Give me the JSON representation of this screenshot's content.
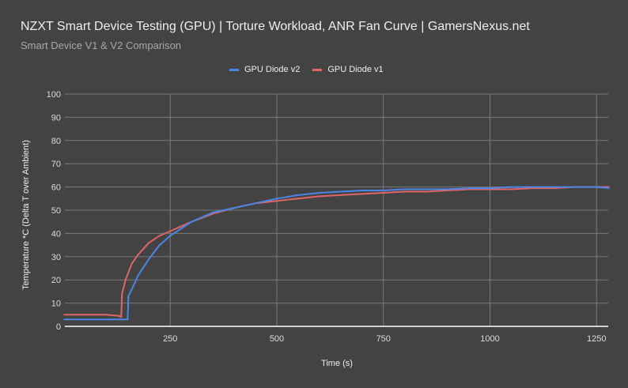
{
  "header": {
    "title": "NZXT Smart Device Testing (GPU) | Torture Workload, ANR Fan Curve | GamersNexus.net",
    "subtitle": "Smart Device V1 & V2 Comparison"
  },
  "legend": [
    {
      "label": "GPU Diode v2",
      "color": "#4a86e8"
    },
    {
      "label": "GPU Diode v1",
      "color": "#e06666"
    }
  ],
  "chart_data": {
    "type": "line",
    "title": "NZXT Smart Device Testing (GPU) | Torture Workload, ANR Fan Curve | GamersNexus.net",
    "subtitle": "Smart Device V1 & V2 Comparison",
    "xlabel": "Time (s)",
    "ylabel": "Temperature *C (Delta T over Ambient)",
    "xlim": [
      0,
      1280
    ],
    "ylim": [
      0,
      100
    ],
    "x_ticks": [
      250,
      500,
      750,
      1000,
      1250
    ],
    "y_ticks": [
      0,
      10,
      20,
      30,
      40,
      50,
      60,
      70,
      80,
      90,
      100
    ],
    "grid": true,
    "legend_position": "top",
    "series": [
      {
        "name": "GPU Diode v2",
        "color": "#4a86e8",
        "x": [
          0,
          50,
          100,
          140,
          143,
          150,
          152,
          160,
          175,
          200,
          225,
          250,
          275,
          300,
          350,
          400,
          450,
          500,
          550,
          600,
          650,
          700,
          750,
          800,
          850,
          900,
          950,
          1000,
          1050,
          1100,
          1150,
          1200,
          1250,
          1280
        ],
        "values": [
          3,
          3,
          3,
          3,
          3,
          3,
          13,
          16,
          22,
          29,
          35,
          39,
          42,
          45,
          49,
          51,
          53,
          55,
          56.5,
          57.5,
          58,
          58.5,
          58.5,
          59,
          59,
          59,
          59.5,
          59.5,
          60,
          60,
          60,
          60,
          60,
          59.5
        ]
      },
      {
        "name": "GPU Diode v1",
        "color": "#e06666",
        "x": [
          0,
          50,
          100,
          130,
          135,
          137,
          145,
          160,
          175,
          200,
          225,
          250,
          275,
          300,
          350,
          400,
          450,
          500,
          550,
          600,
          650,
          700,
          750,
          800,
          850,
          900,
          950,
          1000,
          1050,
          1100,
          1150,
          1200,
          1250,
          1280
        ],
        "values": [
          5,
          5,
          5,
          4.5,
          4,
          14,
          20,
          27,
          31,
          36,
          39,
          41,
          43,
          45,
          48.5,
          51,
          53,
          54,
          55,
          56,
          56.5,
          57,
          57.5,
          58,
          58,
          58.5,
          59,
          59,
          59,
          59.5,
          59.5,
          60,
          60,
          60
        ]
      }
    ]
  }
}
